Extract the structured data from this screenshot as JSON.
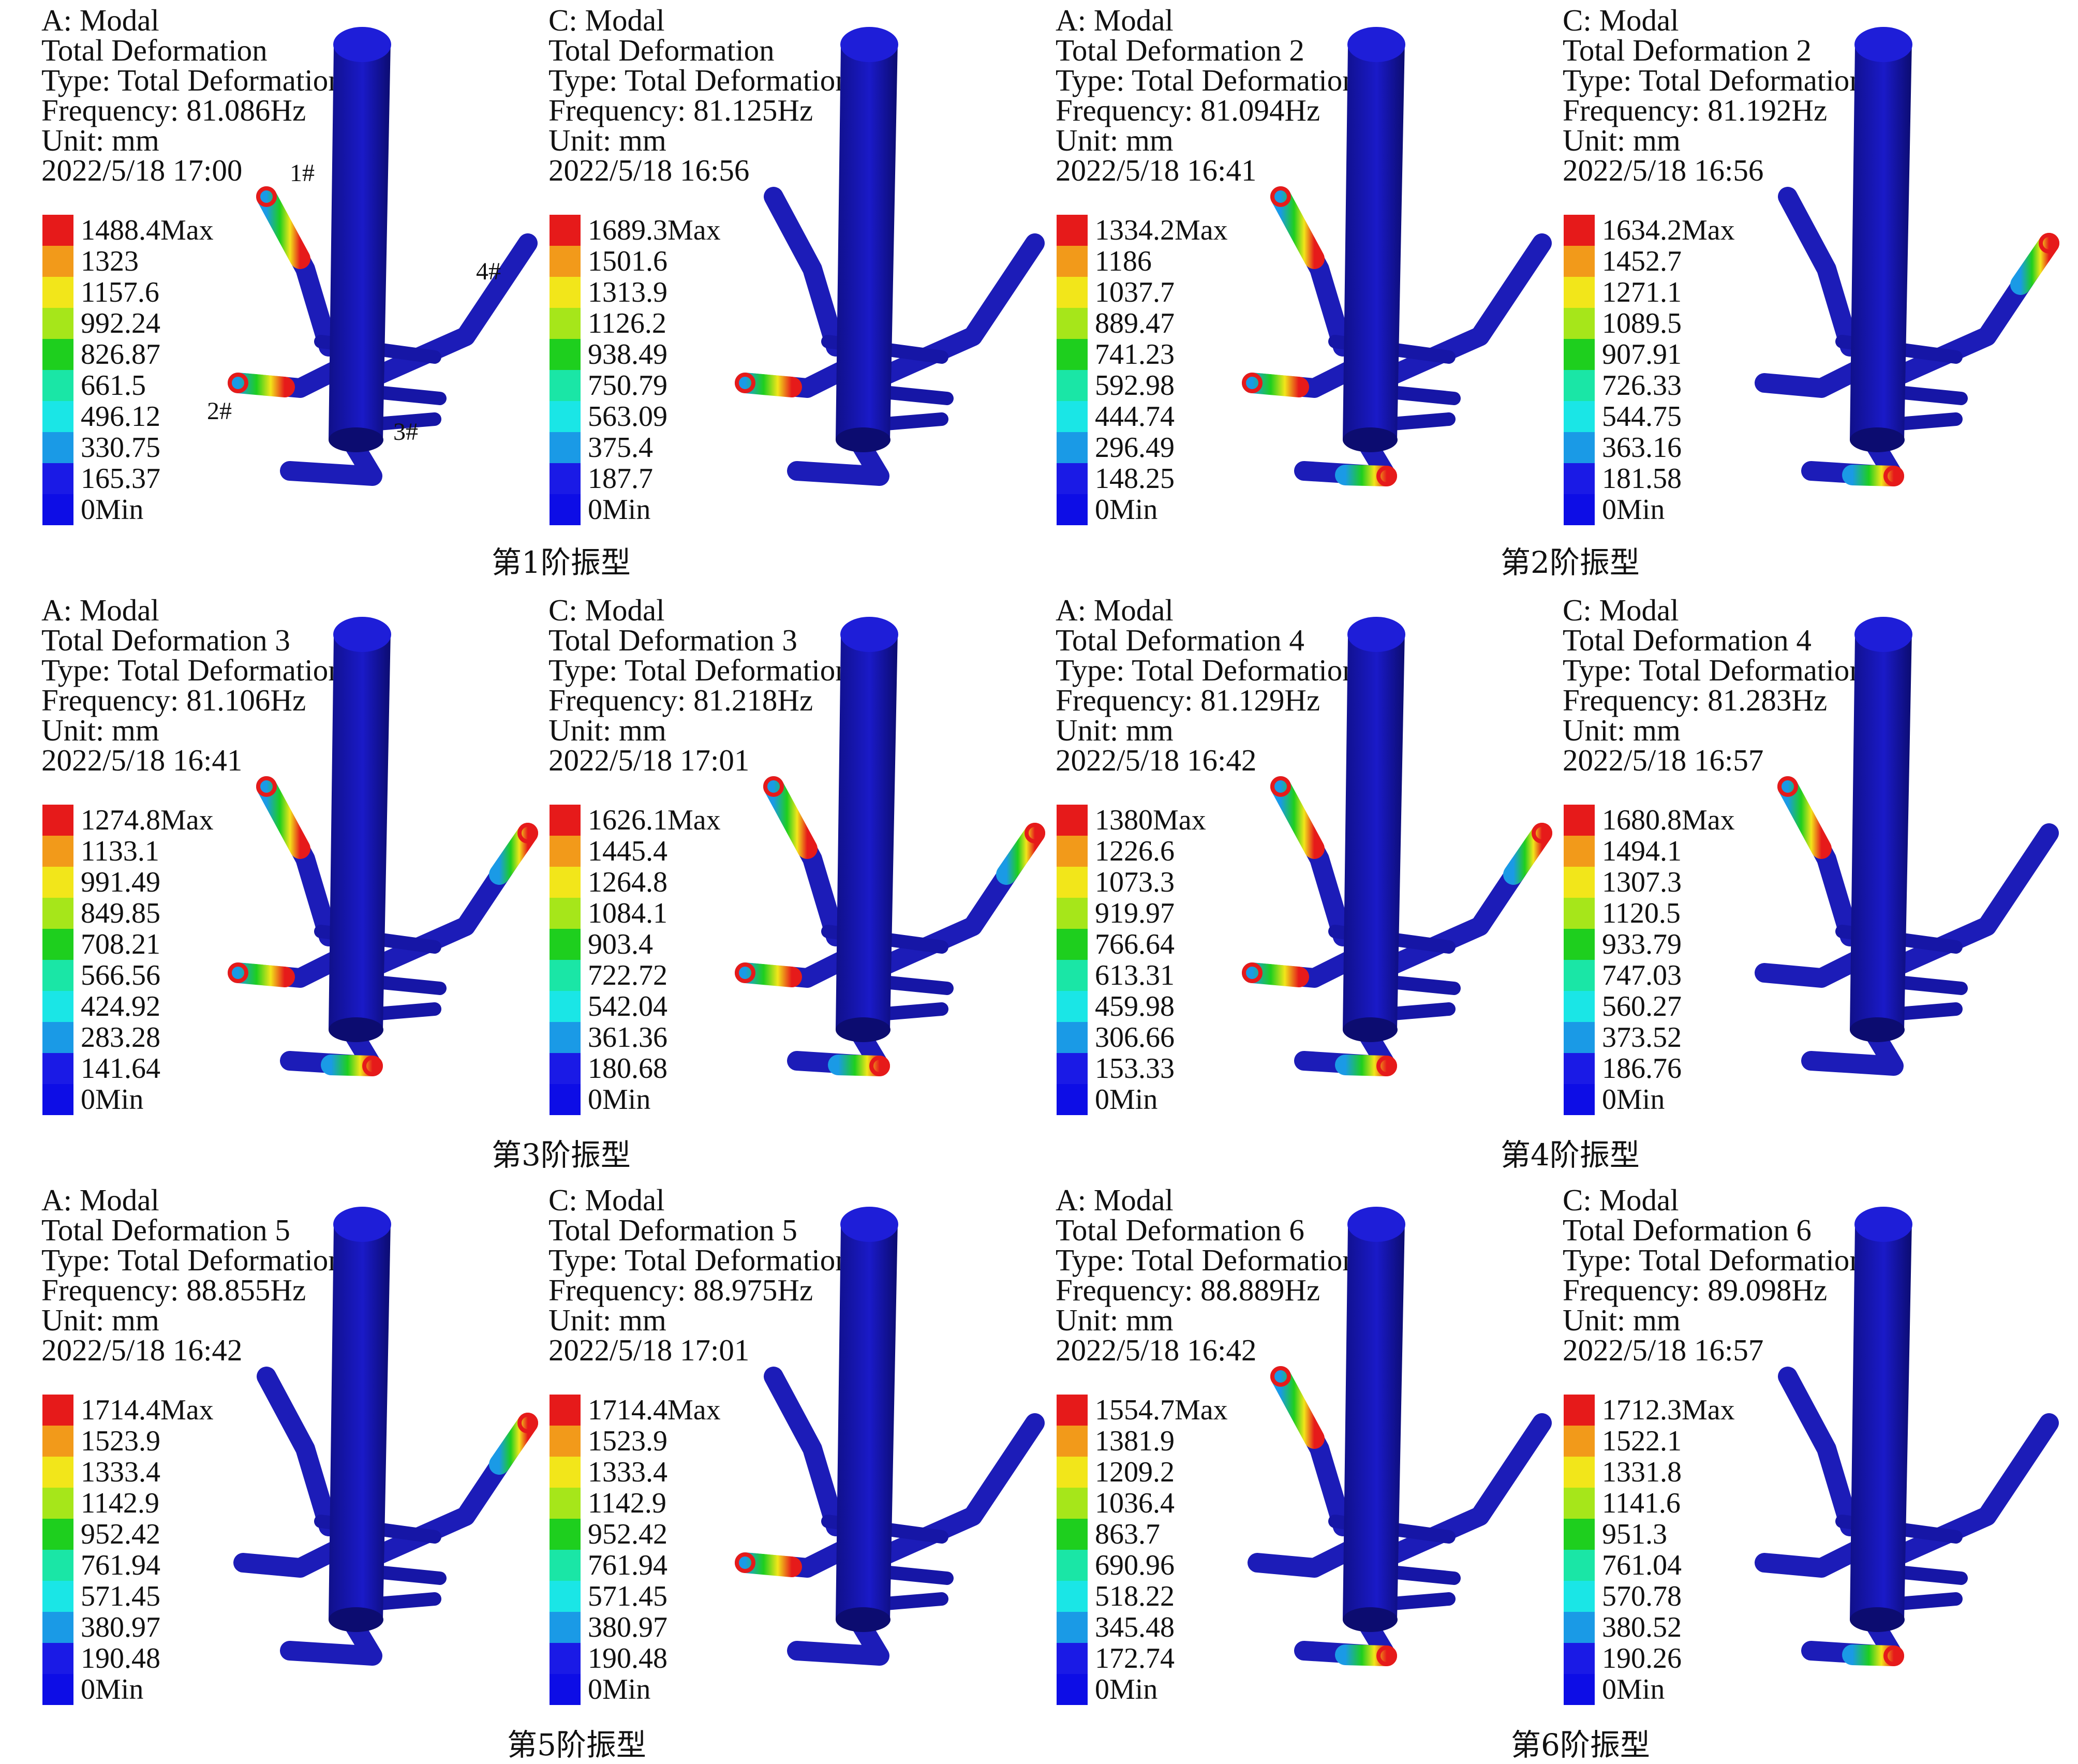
{
  "legend_colors": [
    "#e61a1a",
    "#f29a1a",
    "#f2e61a",
    "#a6e61a",
    "#1ecf1e",
    "#1ae6a6",
    "#1ae6e6",
    "#1a9ae6",
    "#1a1ae6",
    "#0d0de6"
  ],
  "part_labels": [
    "1#",
    "2#",
    "3#",
    "4#"
  ],
  "captions": [
    "第1阶振型",
    "第2阶振型",
    "第3阶振型",
    "第4阶振型",
    "第5阶振型",
    "第6阶振型"
  ],
  "panels": [
    {
      "lines": [
        "A: Modal",
        "Total Deformation",
        "Type: Total Deformation",
        "Frequency: 81.086Hz",
        "Unit: mm",
        "2022/5/18 17:00"
      ],
      "legend": [
        "1488.4Max",
        "1323",
        "1157.6",
        "992.24",
        "826.87",
        "661.5",
        "496.12",
        "330.75",
        "165.37",
        "0Min"
      ]
    },
    {
      "lines": [
        "C: Modal",
        "Total Deformation",
        "Type: Total Deformation",
        "Frequency: 81.125Hz",
        "Unit: mm",
        "2022/5/18 16:56"
      ],
      "legend": [
        "1689.3Max",
        "1501.6",
        "1313.9",
        "1126.2",
        "938.49",
        "750.79",
        "563.09",
        "375.4",
        "187.7",
        "0Min"
      ]
    },
    {
      "lines": [
        "A: Modal",
        "Total Deformation 2",
        "Type: Total Deformation",
        "Frequency: 81.094Hz",
        "Unit: mm",
        "2022/5/18 16:41"
      ],
      "legend": [
        "1334.2Max",
        "1186",
        "1037.7",
        "889.47",
        "741.23",
        "592.98",
        "444.74",
        "296.49",
        "148.25",
        "0Min"
      ]
    },
    {
      "lines": [
        "C: Modal",
        "Total Deformation 2",
        "Type: Total Deformation",
        "Frequency: 81.192Hz",
        "Unit: mm",
        "2022/5/18 16:56"
      ],
      "legend": [
        "1634.2Max",
        "1452.7",
        "1271.1",
        "1089.5",
        "907.91",
        "726.33",
        "544.75",
        "363.16",
        "181.58",
        "0Min"
      ]
    },
    {
      "lines": [
        "A: Modal",
        "Total Deformation 3",
        "Type: Total Deformation",
        "Frequency: 81.106Hz",
        "Unit: mm",
        "2022/5/18 16:41"
      ],
      "legend": [
        "1274.8Max",
        "1133.1",
        "991.49",
        "849.85",
        "708.21",
        "566.56",
        "424.92",
        "283.28",
        "141.64",
        "0Min"
      ]
    },
    {
      "lines": [
        "C: Modal",
        "Total Deformation 3",
        "Type: Total Deformation",
        "Frequency: 81.218Hz",
        "Unit: mm",
        "2022/5/18 17:01"
      ],
      "legend": [
        "1626.1Max",
        "1445.4",
        "1264.8",
        "1084.1",
        "903.4",
        "722.72",
        "542.04",
        "361.36",
        "180.68",
        "0Min"
      ]
    },
    {
      "lines": [
        "A: Modal",
        "Total Deformation 4",
        "Type: Total Deformation",
        "Frequency: 81.129Hz",
        "Unit: mm",
        "2022/5/18 16:42"
      ],
      "legend": [
        "1380Max",
        "1226.6",
        "1073.3",
        "919.97",
        "766.64",
        "613.31",
        "459.98",
        "306.66",
        "153.33",
        "0Min"
      ]
    },
    {
      "lines": [
        "C: Modal",
        "Total Deformation 4",
        "Type: Total Deformation",
        "Frequency: 81.283Hz",
        "Unit: mm",
        "2022/5/18 16:57"
      ],
      "legend": [
        "1680.8Max",
        "1494.1",
        "1307.3",
        "1120.5",
        "933.79",
        "747.03",
        "560.27",
        "373.52",
        "186.76",
        "0Min"
      ]
    },
    {
      "lines": [
        "A: Modal",
        "Total Deformation 5",
        "Type: Total Deformation",
        "Frequency: 88.855Hz",
        "Unit: mm",
        "2022/5/18 16:42"
      ],
      "legend": [
        "1714.4Max",
        "1523.9",
        "1333.4",
        "1142.9",
        "952.42",
        "761.94",
        "571.45",
        "380.97",
        "190.48",
        "0Min"
      ]
    },
    {
      "lines": [
        "C: Modal",
        "Total Deformation 5",
        "Type: Total Deformation",
        "Frequency: 88.975Hz",
        "Unit: mm",
        "2022/5/18 17:01"
      ],
      "legend": [
        "1714.4Max",
        "1523.9",
        "1333.4",
        "1142.9",
        "952.42",
        "761.94",
        "571.45",
        "380.97",
        "190.48",
        "0Min"
      ]
    },
    {
      "lines": [
        "A: Modal",
        "Total Deformation 6",
        "Type: Total Deformation",
        "Frequency: 88.889Hz",
        "Unit: mm",
        "2022/5/18 16:42"
      ],
      "legend": [
        "1554.7Max",
        "1381.9",
        "1209.2",
        "1036.4",
        "863.7",
        "690.96",
        "518.22",
        "345.48",
        "172.74",
        "0Min"
      ]
    },
    {
      "lines": [
        "C: Modal",
        "Total Deformation 6",
        "Type: Total Deformation",
        "Frequency: 89.098Hz",
        "Unit: mm",
        "2022/5/18 16:57"
      ],
      "legend": [
        "1712.3Max",
        "1522.1",
        "1331.8",
        "1141.6",
        "951.3",
        "761.04",
        "570.78",
        "380.52",
        "190.26",
        "0Min"
      ]
    }
  ]
}
